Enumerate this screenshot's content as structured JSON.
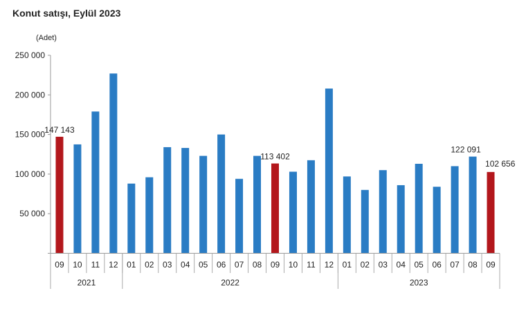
{
  "chart_data": {
    "type": "bar",
    "title": "Konut satışı, Eylül 2023",
    "ylabel": "(Adet)",
    "xlabel": "",
    "ylim": [
      0,
      250000
    ],
    "yticks": [
      50000,
      100000,
      150000,
      200000,
      250000
    ],
    "ytick_labels": [
      "50 000",
      "100 000",
      "150 000",
      "200 000",
      "250 000"
    ],
    "grid": false,
    "categories": [
      "09",
      "10",
      "11",
      "12",
      "01",
      "02",
      "03",
      "04",
      "05",
      "06",
      "07",
      "08",
      "09",
      "10",
      "11",
      "12",
      "01",
      "02",
      "03",
      "04",
      "05",
      "06",
      "07",
      "08",
      "09"
    ],
    "years": [
      {
        "label": "2021",
        "count": 4
      },
      {
        "label": "2022",
        "count": 12
      },
      {
        "label": "2023",
        "count": 9
      }
    ],
    "values": [
      147143,
      137500,
      179000,
      227000,
      88000,
      96000,
      134000,
      133000,
      123000,
      150000,
      94000,
      123000,
      113402,
      103000,
      117500,
      208000,
      97000,
      80000,
      105000,
      86000,
      113000,
      84000,
      110000,
      122091,
      102656
    ],
    "highlight": [
      0,
      12,
      24
    ],
    "data_labels": [
      {
        "index": 0,
        "text": "147 143"
      },
      {
        "index": 12,
        "text": "113 402"
      },
      {
        "index": 23,
        "text": "122 091"
      },
      {
        "index": 24,
        "text": "102 656"
      }
    ],
    "colors": {
      "bar": "#2a7cc4",
      "highlight": "#b3171c"
    }
  }
}
